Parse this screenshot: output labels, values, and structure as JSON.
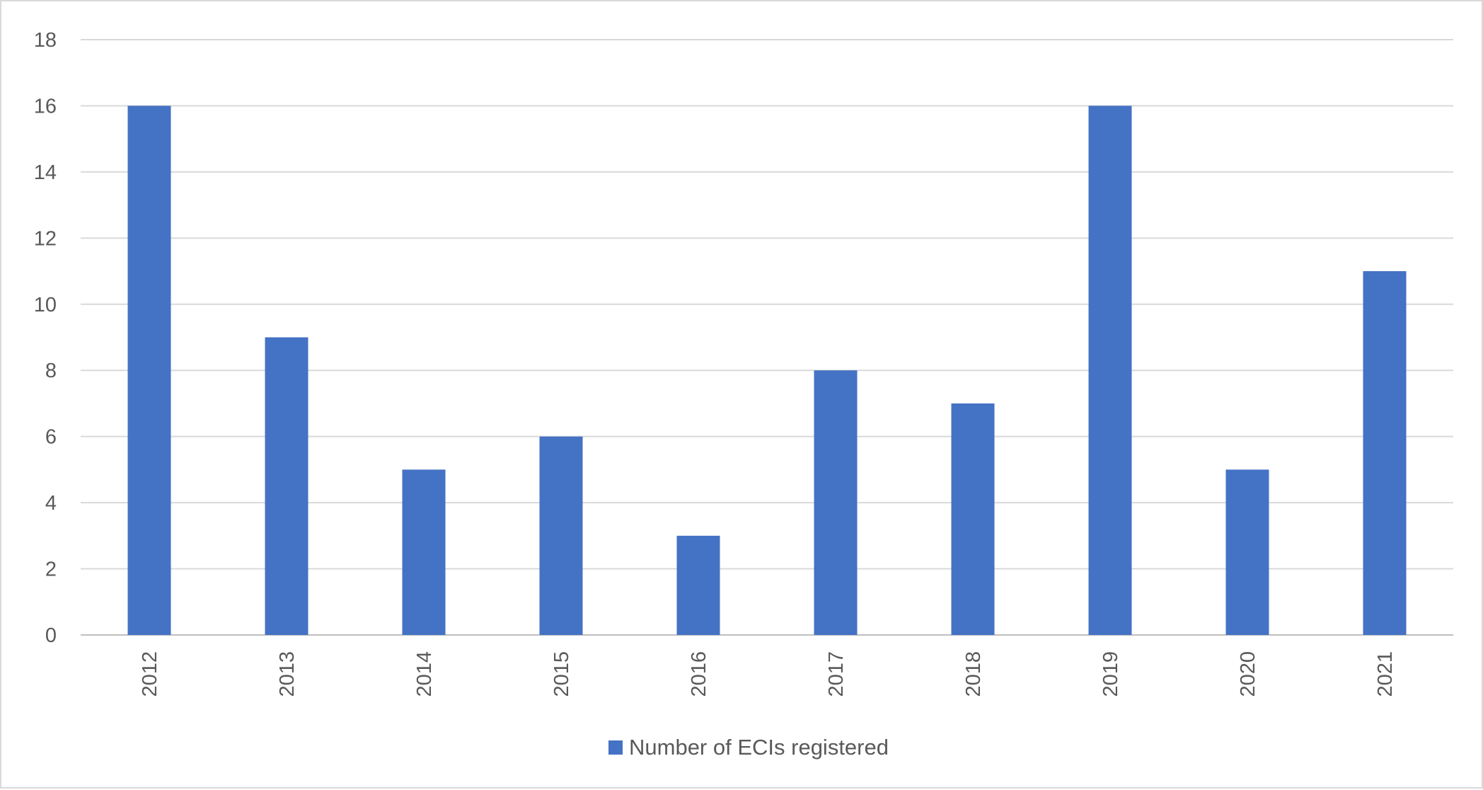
{
  "chart_data": {
    "type": "bar",
    "categories": [
      "2012",
      "2013",
      "2014",
      "2015",
      "2016",
      "2017",
      "2018",
      "2019",
      "2020",
      "2021"
    ],
    "series": [
      {
        "name": "Number of ECIs registered",
        "values": [
          16,
          9,
          5,
          6,
          3,
          8,
          7,
          16,
          5,
          11
        ],
        "color": "#4472c4"
      }
    ],
    "title": "",
    "xlabel": "",
    "ylabel": "",
    "ylim": [
      0,
      18
    ],
    "yticks": [
      0,
      2,
      4,
      6,
      8,
      10,
      12,
      14,
      16,
      18
    ],
    "grid": true,
    "legend": "bottom"
  },
  "colors": {
    "bar": "#4472c4",
    "grid": "#d9d9d9",
    "text": "#595959"
  }
}
